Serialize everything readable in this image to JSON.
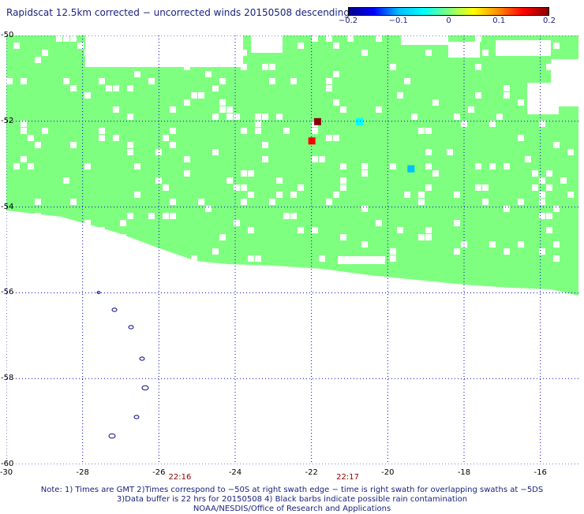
{
  "title": "Rapidscat 12.5km corrected − uncorrected winds 20150508 descending",
  "colorbar": {
    "labels": [
      "−0.2",
      "−0.1",
      "0",
      "0.1",
      "0.2"
    ],
    "values": [
      -0.2,
      -0.1,
      0,
      0.1,
      0.2
    ],
    "range": [
      -0.2,
      0.2
    ],
    "colors": [
      "#00008b",
      "#0000ff",
      "#00bfff",
      "#00ffff",
      "#7fff7f",
      "#ffff00",
      "#ff8c00",
      "#ff0000",
      "#8b0000"
    ]
  },
  "axes": {
    "lat_labels": [
      "-50",
      "-52",
      "-54",
      "-56",
      "-58",
      "-60"
    ],
    "lat_values": [
      -50,
      -52,
      -54,
      -56,
      -58,
      -60
    ],
    "lon_labels": [
      "-30",
      "-28",
      "-26",
      "-24",
      "-22",
      "-20",
      "-18",
      "-16"
    ],
    "lon_values": [
      -30,
      -28,
      -26,
      -24,
      -22,
      -20,
      -18,
      -16
    ],
    "lon_range": [
      -30,
      -15
    ],
    "lat_range": [
      -50,
      -60
    ],
    "grid": "dotted"
  },
  "time_marks": [
    {
      "label": "22:16",
      "lon": -25.45
    },
    {
      "label": "22:17",
      "lon": -21.05
    }
  ],
  "colors": {
    "zero_fill": "#7fff7f",
    "text": "#1a237e",
    "land_outline": "#000080",
    "time_text": "#8b0000"
  },
  "notes": [
    "Note: 1) Times are GMT 2)Times correspond to −50S at right swath edge − time is right swath for overlapping swaths at −5DS",
    "3)Data buffer is 22 hrs for 20150508 4) Black barbs indicate possible rain contamination",
    "NOAA/NESDIS/Office of Research and Applications"
  ],
  "highlights": [
    {
      "lon": -21.85,
      "lat": -52.0,
      "value": 0.2
    },
    {
      "lon": -22.0,
      "lat": -52.45,
      "value": 0.15
    },
    {
      "lon": -20.75,
      "lat": -52.0,
      "value": -0.05
    },
    {
      "lon": -19.4,
      "lat": -53.1,
      "value": -0.08
    }
  ]
}
